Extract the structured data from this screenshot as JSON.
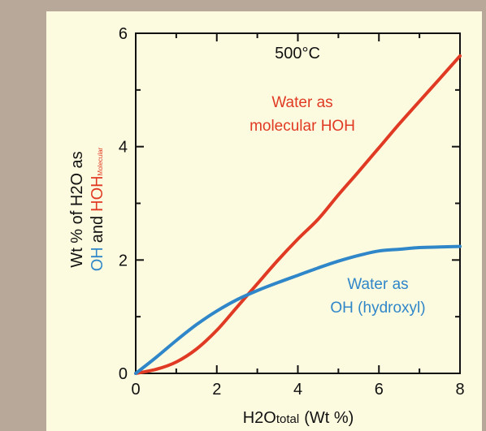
{
  "colors": {
    "frame_bg": "#b7a89a",
    "panel_bg": "#fdfbdf",
    "axis": "#111111",
    "molecular": "#e03a24",
    "hydroxyl": "#2f86c9"
  },
  "chart_data": {
    "type": "line",
    "title": "500°C",
    "xlabel": {
      "main": "H2O",
      "sub": "total",
      "tail": "(Wt %)"
    },
    "ylabel": {
      "line1": "Wt % of H2O as",
      "oh": "OH",
      "and": "and",
      "hoh": "HOH",
      "hoh_sub": "Molecular"
    },
    "xlim": [
      0,
      8
    ],
    "ylim": [
      0,
      6
    ],
    "xticks": [
      0,
      2,
      4,
      6,
      8
    ],
    "yticks": [
      0,
      2,
      4,
      6
    ],
    "xticks_minor": [
      1,
      3,
      5,
      7
    ],
    "yticks_minor": [
      1,
      3,
      5
    ],
    "grid": false,
    "series": [
      {
        "id": "molecular",
        "color": "#e03a24",
        "label_lines": [
          "Water as",
          "molecular HOH"
        ],
        "x": [
          0,
          0.5,
          1,
          1.5,
          2,
          2.5,
          3,
          3.5,
          4,
          4.5,
          5,
          5.5,
          6,
          6.5,
          7,
          7.5,
          8
        ],
        "y": [
          0,
          0.07,
          0.2,
          0.43,
          0.76,
          1.17,
          1.58,
          1.99,
          2.37,
          2.72,
          3.15,
          3.56,
          3.98,
          4.4,
          4.8,
          5.2,
          5.6
        ]
      },
      {
        "id": "hydroxyl",
        "color": "#2f86c9",
        "label_lines": [
          "Water as",
          "OH (hydroxyl)"
        ],
        "x": [
          0,
          0.5,
          1,
          1.5,
          2,
          2.5,
          3,
          3.5,
          4,
          4.5,
          5,
          5.5,
          6,
          6.5,
          7,
          7.5,
          8
        ],
        "y": [
          0,
          0.28,
          0.58,
          0.86,
          1.1,
          1.3,
          1.46,
          1.6,
          1.73,
          1.86,
          1.98,
          2.08,
          2.16,
          2.19,
          2.22,
          2.23,
          2.24
        ]
      }
    ]
  }
}
